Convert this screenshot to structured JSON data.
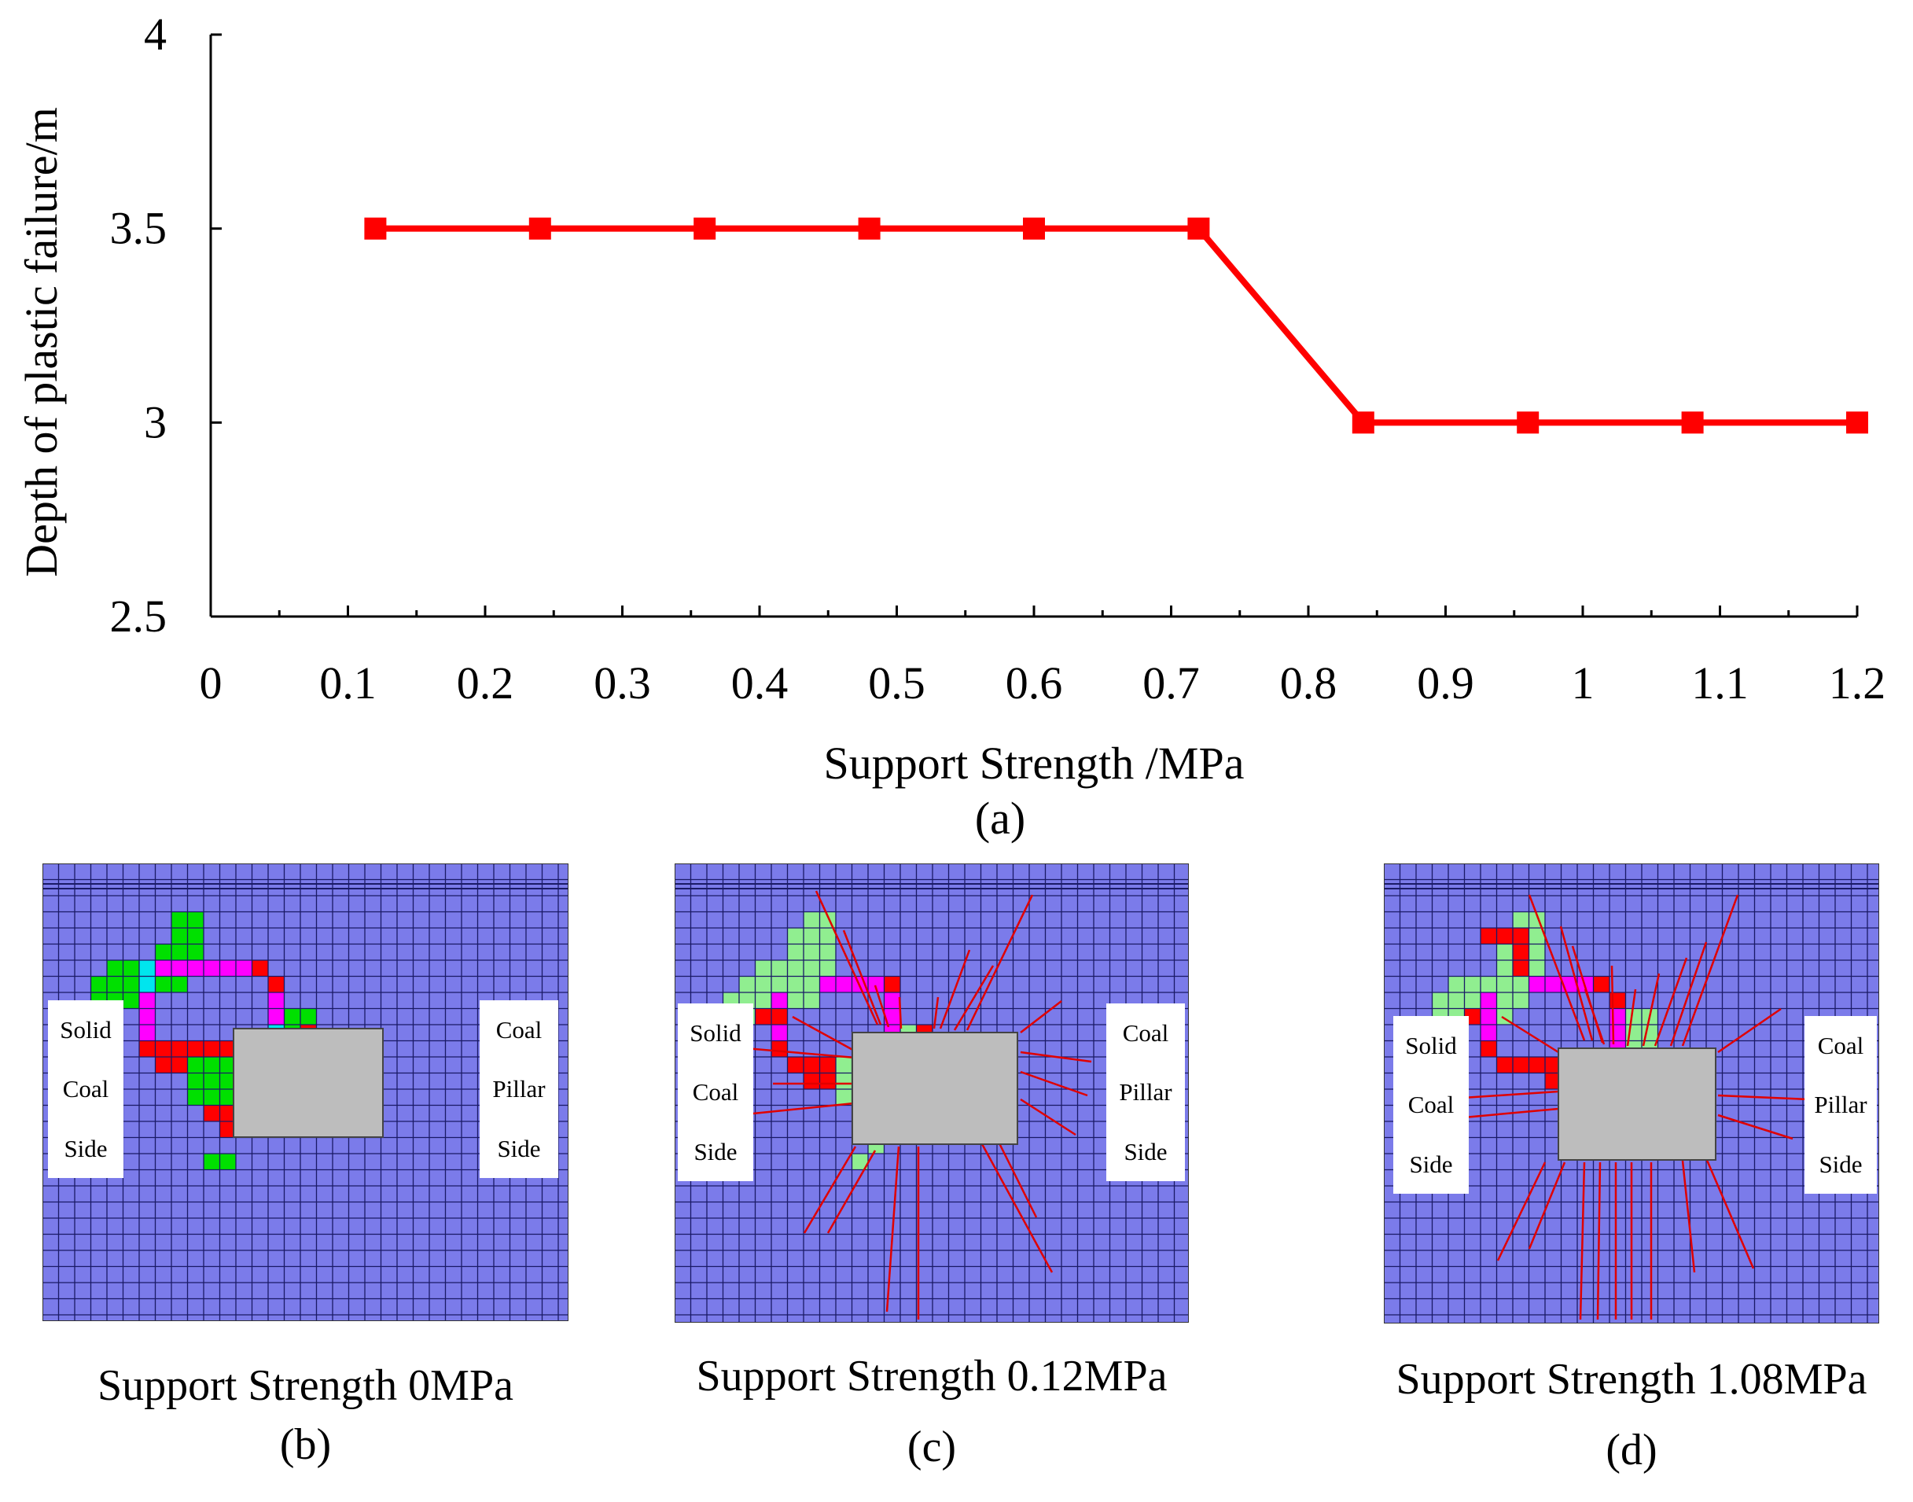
{
  "chart_data": {
    "type": "line",
    "xlabel": "Support Strength /MPa",
    "ylabel": "Depth of plastic failure/m",
    "xlim": [
      0,
      1.2
    ],
    "ylim": [
      2.5,
      4
    ],
    "xticks": [
      "0",
      "0.1",
      "0.2",
      "0.3",
      "0.4",
      "0.5",
      "0.6",
      "0.7",
      "0.8",
      "0.9",
      "1",
      "1.1",
      "1.2"
    ],
    "yticks": [
      "2.5",
      "3",
      "3.5",
      "4"
    ],
    "grid": false,
    "series": [
      {
        "color": "#ff0000",
        "marker": "square",
        "x": [
          0.12,
          0.24,
          0.36,
          0.48,
          0.6,
          0.72,
          0.84,
          0.96,
          1.08,
          1.2
        ],
        "y": [
          3.5,
          3.5,
          3.5,
          3.5,
          3.5,
          3.5,
          3.0,
          3.0,
          3.0,
          3.0
        ]
      }
    ],
    "caption": "(a)"
  },
  "panels": [
    {
      "id": "b",
      "title": "Support Strength 0MPa",
      "caption": "(b)",
      "left_label": [
        "Solid",
        "Coal",
        "Side"
      ],
      "right_label": [
        "Coal",
        "Pillar",
        "Side"
      ]
    },
    {
      "id": "c",
      "title": "Support Strength 0.12MPa",
      "caption": "(c)",
      "left_label": [
        "Solid",
        "Coal",
        "Side"
      ],
      "right_label": [
        "Coal",
        "Pillar",
        "Side"
      ]
    },
    {
      "id": "d",
      "title": "Support Strength 1.08MPa",
      "caption": "(d)",
      "left_label": [
        "Solid",
        "Coal",
        "Side"
      ],
      "right_label": [
        "Coal",
        "Pillar",
        "Side"
      ]
    }
  ],
  "colors": {
    "series": "#ff0000",
    "mesh_background": "#7b7bea",
    "mesh_line": "#1a1a66",
    "roadway": "#bdbdbd",
    "failure_green": "#00e000",
    "failure_light_green": "#90ee90",
    "failure_red": "#ff0000",
    "failure_magenta": "#ff00ff",
    "failure_cyan": "#00e5ee",
    "bolt": "#e00000"
  }
}
